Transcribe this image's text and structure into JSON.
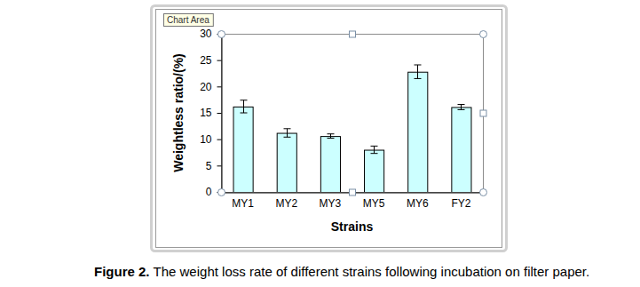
{
  "chart_data": {
    "type": "bar",
    "x_label": "Strains",
    "y_label": "Weightless ratio/(%)",
    "categories": [
      "MY1",
      "MY2",
      "MY3",
      "MY5",
      "MY6",
      "FY2"
    ],
    "values": [
      16.2,
      11.2,
      10.6,
      8.0,
      22.8,
      16.1
    ],
    "errors": [
      1.2,
      0.8,
      0.4,
      0.7,
      1.3,
      0.5
    ],
    "color": "#ccffff",
    "ylim": [
      0,
      30
    ],
    "yticks": [
      0,
      5,
      10,
      15,
      20,
      25,
      30
    ],
    "grid": false,
    "annotation": "Chart Area"
  },
  "caption_label": "Figure 2.",
  "caption": "The weight loss rate of different strains following incubation on filter paper."
}
